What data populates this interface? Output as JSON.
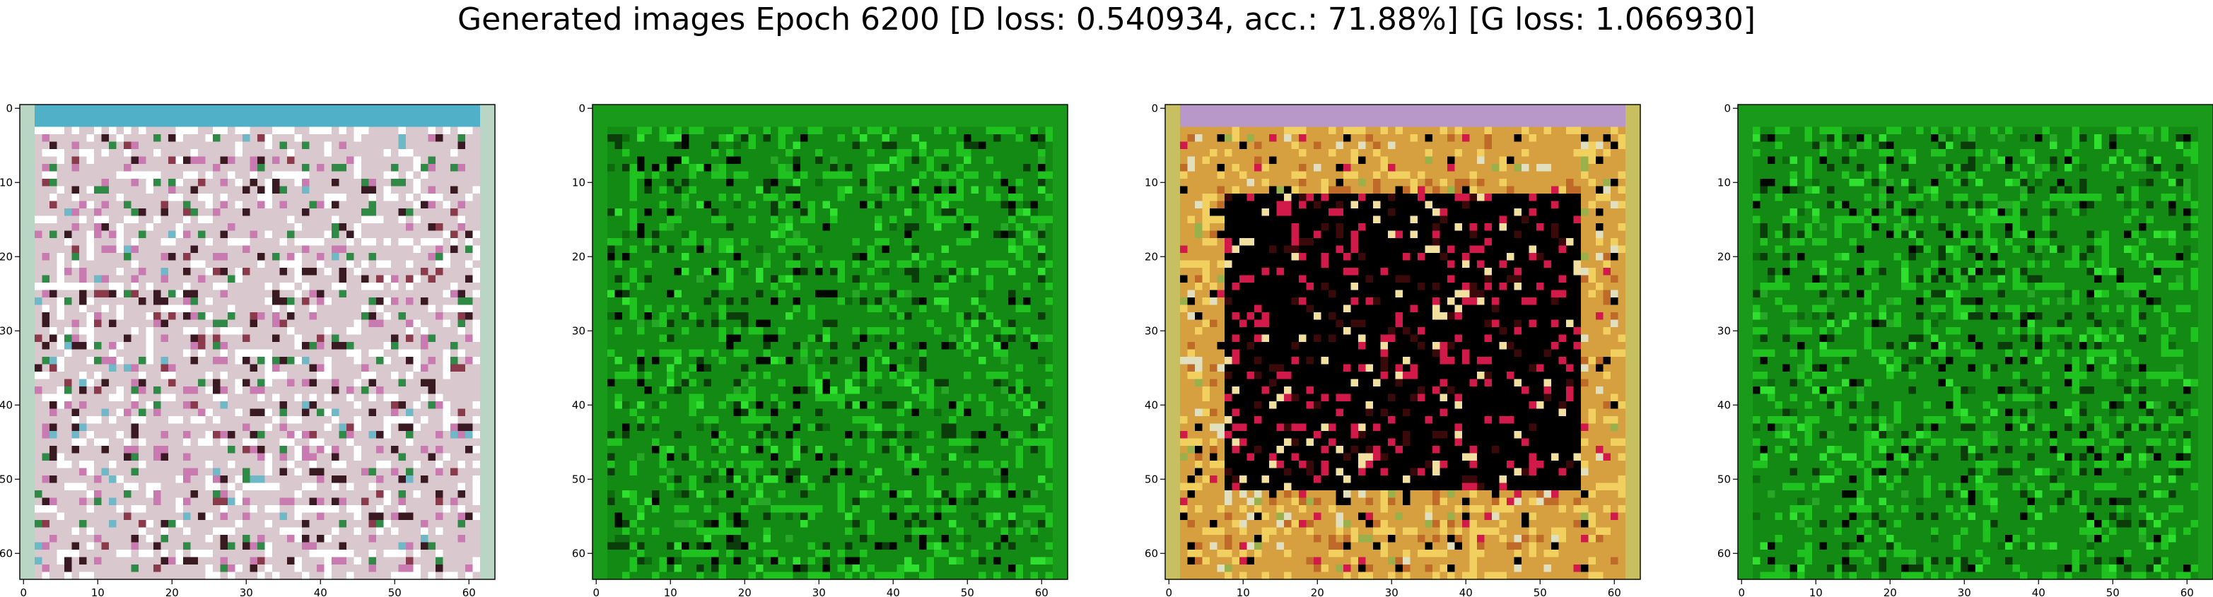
{
  "figure": {
    "title": "Generated images Epoch 6200 [D loss: 0.540934, acc.: 71.88%] [G loss: 1.066930]"
  },
  "chart_data": [
    {
      "type": "heatmap",
      "x_ticks": [
        "0",
        "10",
        "20",
        "30",
        "40",
        "50",
        "60"
      ],
      "y_ticks": [
        "0",
        "10",
        "20",
        "30",
        "40",
        "50",
        "60"
      ],
      "xlim": [
        -0.5,
        63.5
      ],
      "ylim": [
        63.5,
        -0.5
      ],
      "grid": false,
      "palette": {
        "base": "#d9c9cf",
        "a": "#ffffff",
        "b": "#c97ab0",
        "c": "#3a1a22",
        "d": "#2f8a45",
        "e": "#8a3a4a",
        "f": "#6fb8c8"
      },
      "frame": {
        "top": "#4fb0c8",
        "sides": "#b9d6c4"
      }
    },
    {
      "type": "heatmap",
      "x_ticks": [
        "0",
        "10",
        "20",
        "30",
        "40",
        "50",
        "60"
      ],
      "y_ticks": [
        "0",
        "10",
        "20",
        "30",
        "40",
        "50",
        "60"
      ],
      "xlim": [
        -0.5,
        63.5
      ],
      "ylim": [
        63.5,
        -0.5
      ],
      "grid": false,
      "palette": {
        "base": "#138a13",
        "a": "#1fc21f",
        "b": "#0a3d0a",
        "c": "#000800",
        "d": "#2fe02f",
        "e": "#0e6a0e",
        "f": "#26a826"
      },
      "frame": {
        "top": "#1a9a1a",
        "sides": "#1a9a1a"
      }
    },
    {
      "type": "heatmap",
      "x_ticks": [
        "0",
        "10",
        "20",
        "30",
        "40",
        "50",
        "60"
      ],
      "y_ticks": [
        "0",
        "10",
        "20",
        "30",
        "40",
        "50",
        "60"
      ],
      "xlim": [
        -0.5,
        63.5
      ],
      "ylim": [
        63.5,
        -0.5
      ],
      "grid": false,
      "palette": {
        "base": "#d6a040",
        "a": "#f2d060",
        "b": "#c06a2a",
        "c": "#000000",
        "d": "#e0e0c0",
        "e": "#d21a4a",
        "f": "#9ab04a"
      },
      "frame": {
        "top": "#b898c8",
        "sides": "#c8c060"
      }
    },
    {
      "type": "heatmap",
      "x_ticks": [
        "0",
        "10",
        "20",
        "30",
        "40",
        "50",
        "60"
      ],
      "y_ticks": [
        "0",
        "10",
        "20",
        "30",
        "40",
        "50",
        "60"
      ],
      "xlim": [
        -0.5,
        63.5
      ],
      "ylim": [
        63.5,
        -0.5
      ],
      "grid": false,
      "palette": {
        "base": "#138a13",
        "a": "#1fc21f",
        "b": "#0a3d0a",
        "c": "#000800",
        "d": "#2fe02f",
        "e": "#0e6a0e",
        "f": "#26a826"
      },
      "frame": {
        "top": "#1a9a1a",
        "sides": "#1a9a1a"
      }
    }
  ]
}
